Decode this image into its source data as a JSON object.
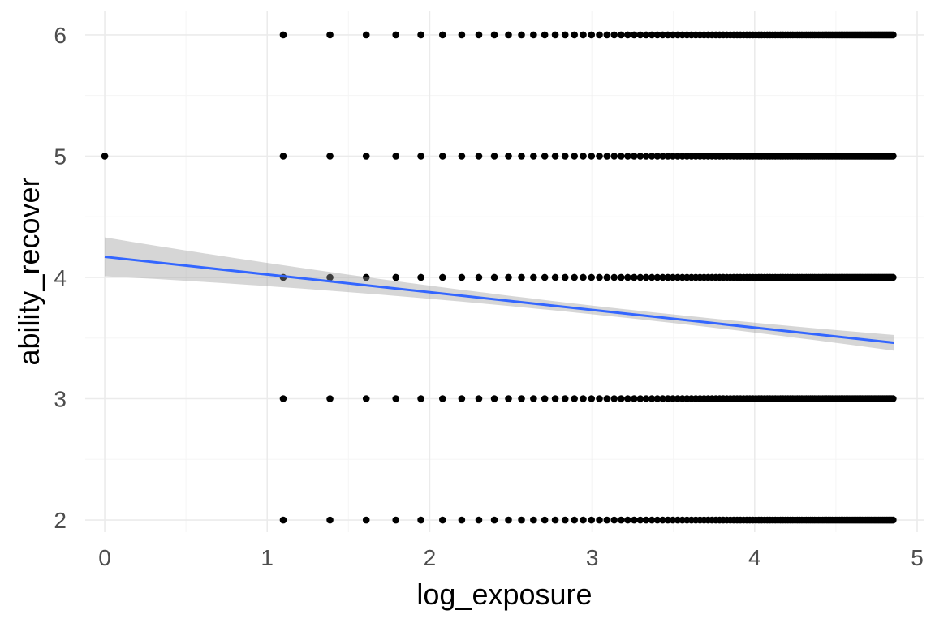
{
  "chart_data": {
    "type": "scatter",
    "title": "",
    "xlabel": "log_exposure",
    "ylabel": "ability_recover",
    "xlim": [
      -0.12,
      5.04
    ],
    "ylim": [
      1.9,
      6.2
    ],
    "x_ticks": [
      0,
      1,
      2,
      3,
      4,
      5
    ],
    "y_ticks": [
      2,
      3,
      4,
      5,
      6
    ],
    "grid": true,
    "legend": "none",
    "points": {
      "y_levels": [
        2,
        3,
        4,
        5,
        6
      ],
      "exposure_counts_from": 3,
      "exposure_counts_to": 128,
      "extra_points": [
        {
          "x": 0,
          "y": 5
        }
      ]
    },
    "trend": {
      "method": "linear",
      "x_range": [
        0,
        4.86
      ],
      "intercept": 4.17,
      "slope": -0.146,
      "ci_halfwidth_at_min": 0.16,
      "ci_halfwidth_at_center": 0.035,
      "ci_halfwidth_at_max": 0.065,
      "ci_center": 3.3
    },
    "colors": {
      "points": "#000000",
      "line": "#3366ff",
      "ribbon": "#999999"
    }
  }
}
